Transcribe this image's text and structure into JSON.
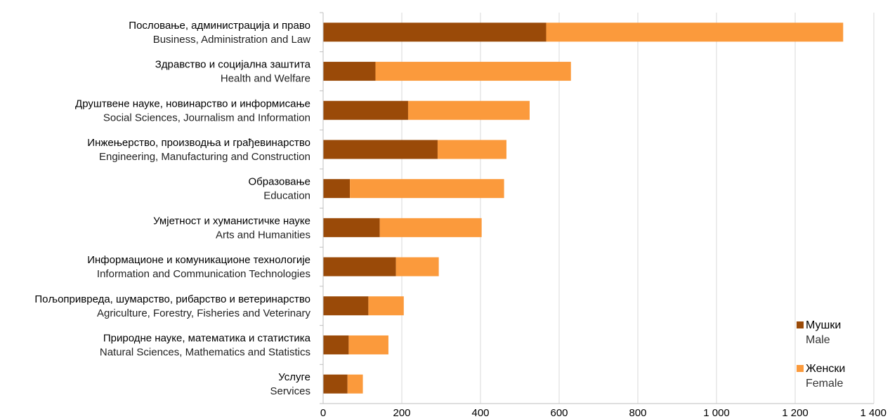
{
  "chart_data": {
    "type": "bar",
    "orientation": "horizontal",
    "stacked": true,
    "categories": [
      {
        "sr": "Пословање, администрација и право",
        "en": "Business, Administration and Law"
      },
      {
        "sr": "Здравство и социјална заштита",
        "en": "Health and Welfare"
      },
      {
        "sr": "Друштвене науке, новинарство и информисање",
        "en": "Social Sciences, Journalism and Information"
      },
      {
        "sr": "Инжењерство, производња и грађевинарство",
        "en": "Engineering, Manufacturing and Construction"
      },
      {
        "sr": "Образовање",
        "en": "Education"
      },
      {
        "sr": "Умјетност и хуманистичке науке",
        "en": "Arts and Humanities"
      },
      {
        "sr": "Информационе и комуникационе технологије",
        "en": "Information and Communication Technologies"
      },
      {
        "sr": "Пољопривреда, шумарство, рибарство и ветеринарство",
        "en": "Agriculture, Forestry, Fisheries and Veterinary"
      },
      {
        "sr": "Природне науке, математика и статистика",
        "en": "Natural Sciences, Mathematics and Statistics"
      },
      {
        "sr": "Услуге",
        "en": "Services"
      }
    ],
    "series": [
      {
        "name_sr": "Мушки",
        "name_en": "Male",
        "color": "#9a4a08",
        "values": [
          567,
          133,
          216,
          291,
          68,
          144,
          185,
          115,
          65,
          62
        ]
      },
      {
        "name_sr": "Женски",
        "name_en": "Female",
        "color": "#fb9a3c",
        "values": [
          755,
          497,
          309,
          175,
          392,
          259,
          109,
          90,
          101,
          39
        ]
      }
    ],
    "xlim": [
      0,
      1400
    ],
    "xticks": [
      {
        "value": 0,
        "label": "0"
      },
      {
        "value": 200,
        "label": "200"
      },
      {
        "value": 400,
        "label": "400"
      },
      {
        "value": 600,
        "label": "600"
      },
      {
        "value": 800,
        "label": "800"
      },
      {
        "value": 1000,
        "label": "1 000"
      },
      {
        "value": 1200,
        "label": "1 200"
      },
      {
        "value": 1400,
        "label": "1 400"
      }
    ],
    "grid": "vertical",
    "gridColor": "#d9d9d9",
    "legend_position": "bottom-right",
    "title": "",
    "xlabel": "",
    "ylabel": ""
  }
}
